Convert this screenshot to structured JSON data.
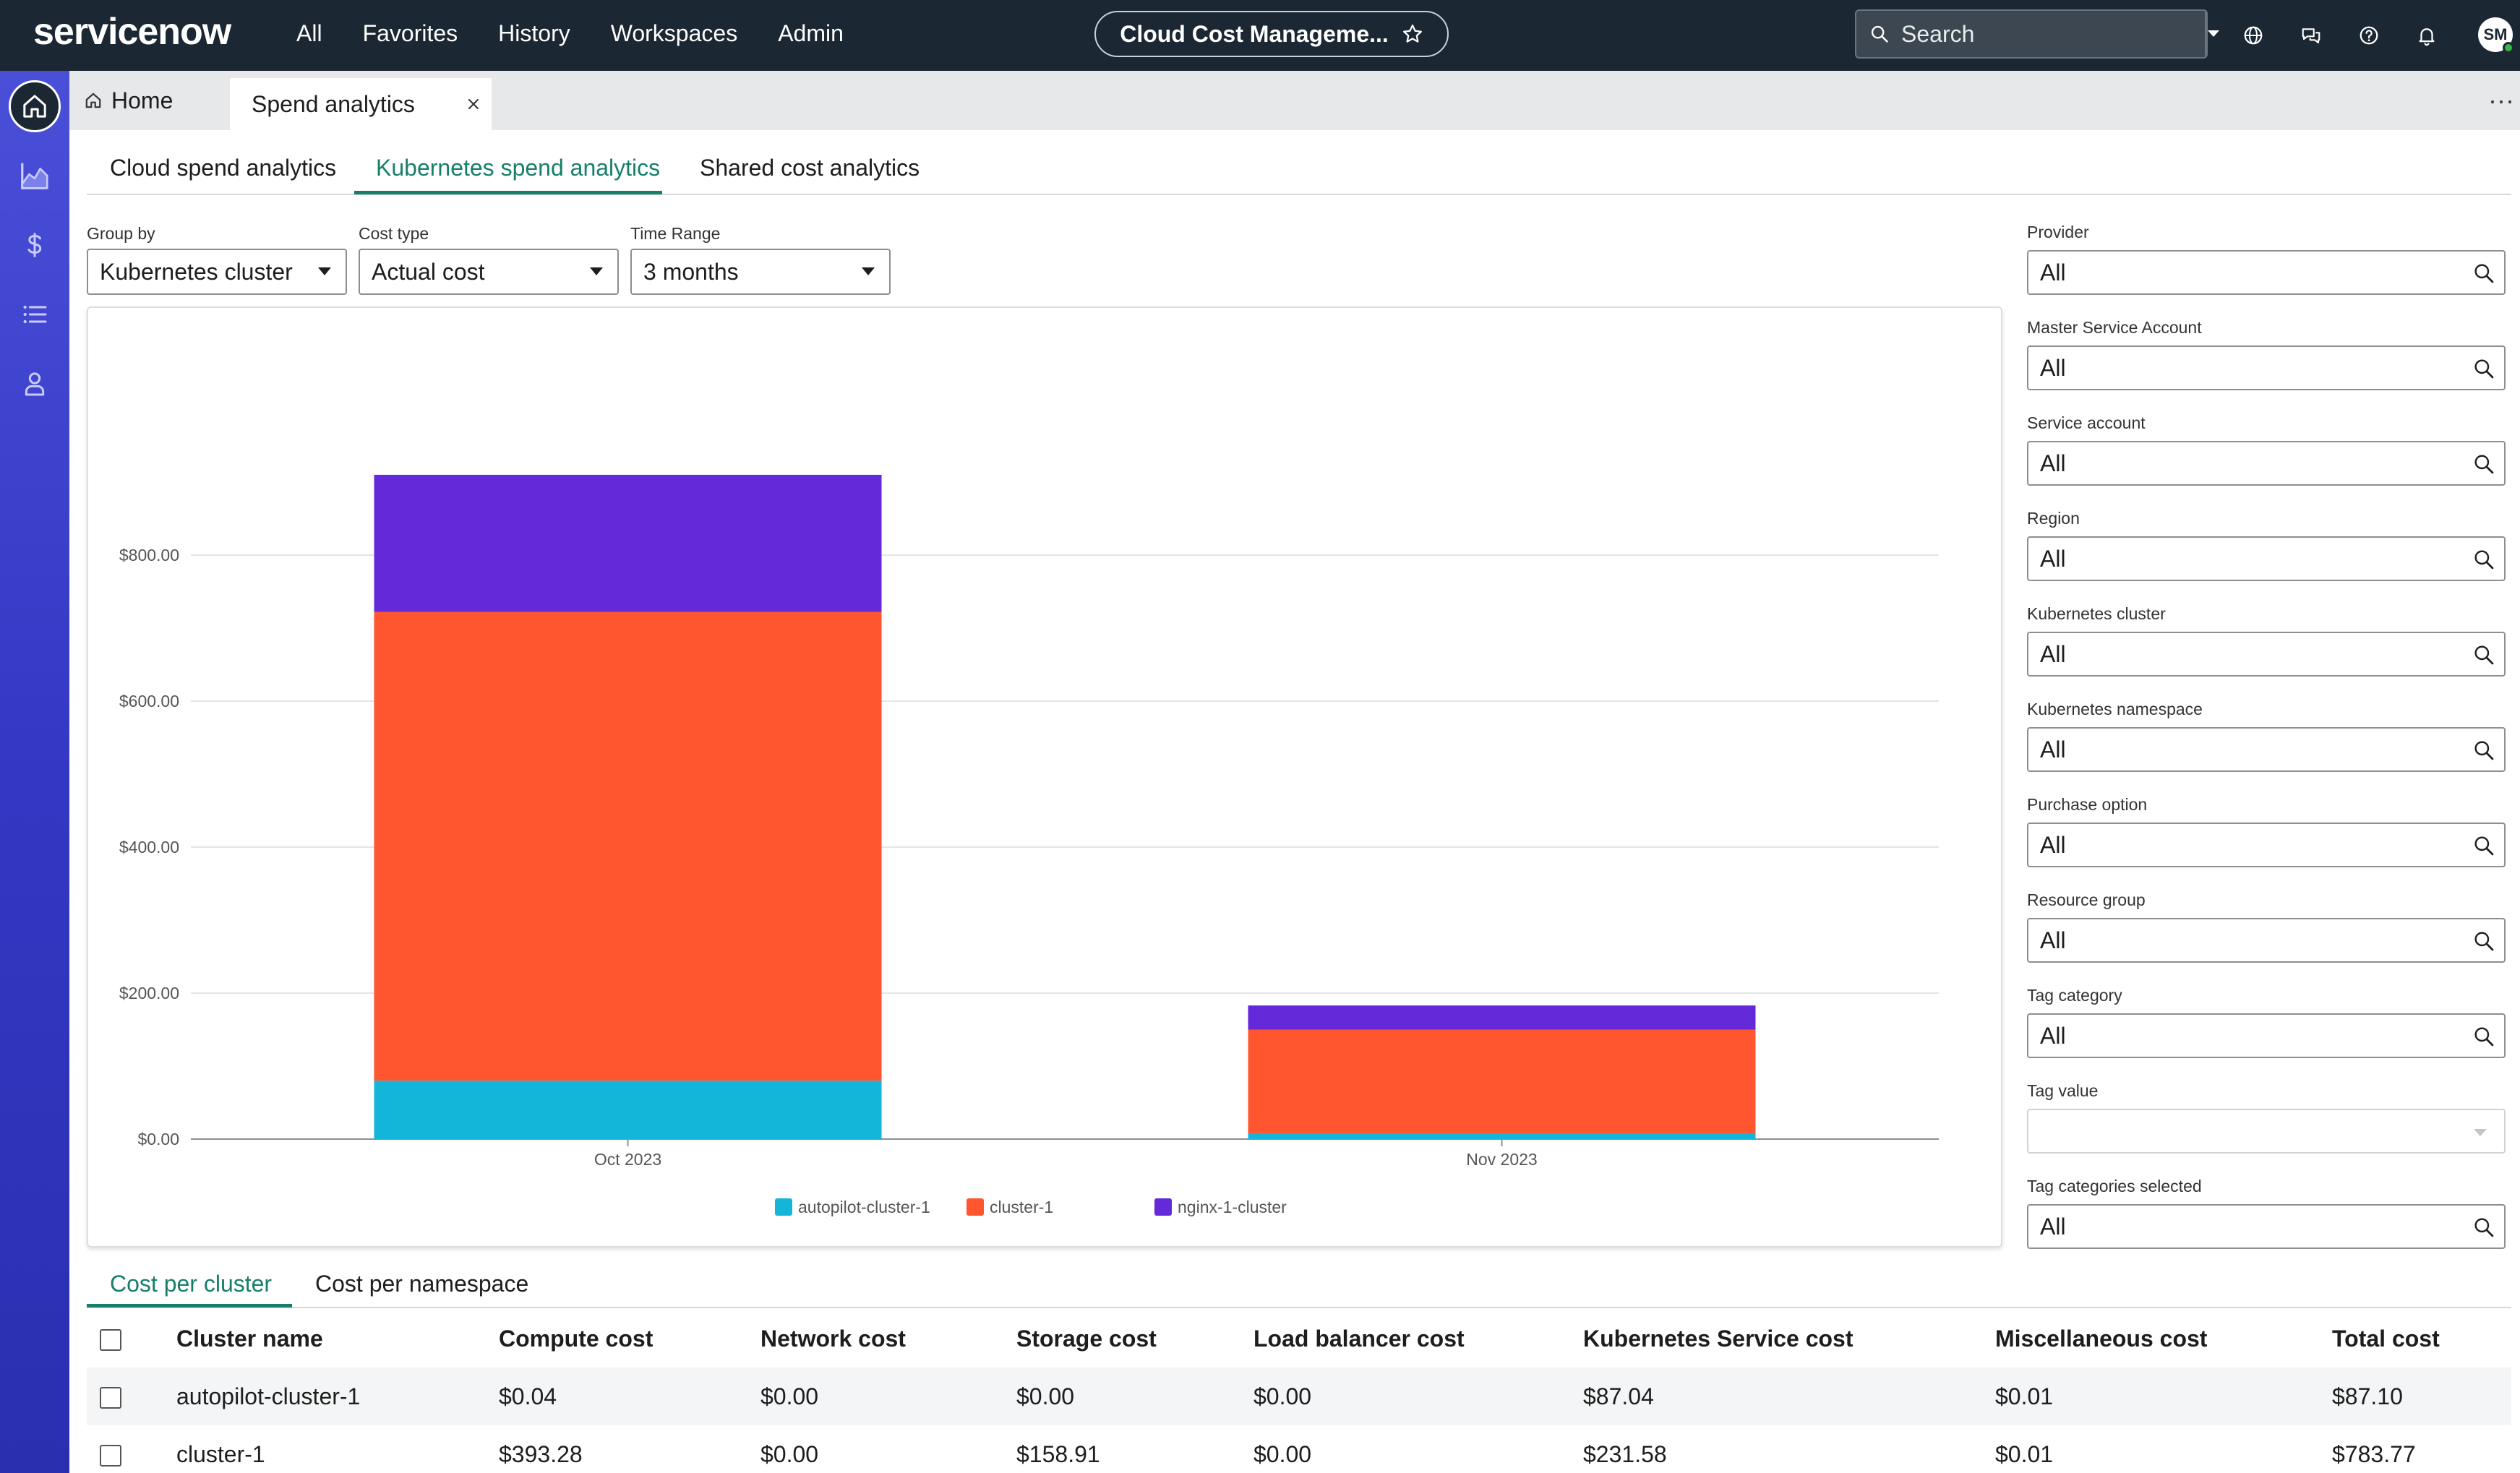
{
  "topbar": {
    "logo": "servicenow",
    "nav": [
      "All",
      "Favorites",
      "History",
      "Workspaces",
      "Admin"
    ],
    "app_title": "Cloud Cost Manageme...",
    "search_placeholder": "Search",
    "avatar_initials": "SM"
  },
  "tabs": {
    "home": "Home",
    "active": "Spend analytics"
  },
  "subtabs": [
    "Cloud spend analytics",
    "Kubernetes spend analytics",
    "Shared cost analytics"
  ],
  "filters": {
    "group_by": {
      "label": "Group by",
      "value": "Kubernetes cluster"
    },
    "cost_type": {
      "label": "Cost type",
      "value": "Actual cost"
    },
    "time_range": {
      "label": "Time Range",
      "value": "3 months"
    }
  },
  "right_filters": [
    {
      "label": "Provider",
      "value": "All"
    },
    {
      "label": "Master Service Account",
      "value": "All"
    },
    {
      "label": "Service account",
      "value": "All"
    },
    {
      "label": "Region",
      "value": "All"
    },
    {
      "label": "Kubernetes cluster",
      "value": "All"
    },
    {
      "label": "Kubernetes namespace",
      "value": "All"
    },
    {
      "label": "Purchase option",
      "value": "All"
    },
    {
      "label": "Resource group",
      "value": "All"
    },
    {
      "label": "Tag category",
      "value": "All"
    },
    {
      "label": "Tag value",
      "value": ""
    },
    {
      "label": "Tag categories selected",
      "value": "All"
    }
  ],
  "chart_data": {
    "type": "bar",
    "stacked": true,
    "categories": [
      "Oct 2023",
      "Nov 2023"
    ],
    "series": [
      {
        "name": "autopilot-cluster-1",
        "color": "#13b5d9",
        "values": [
          80,
          8
        ]
      },
      {
        "name": "cluster-1",
        "color": "#ff562f",
        "values": [
          642,
          142
        ]
      },
      {
        "name": "nginx-1-cluster",
        "color": "#642ad9",
        "values": [
          188,
          33
        ]
      }
    ],
    "yticks": [
      "$0.00",
      "$200.00",
      "$400.00",
      "$600.00",
      "$800.00"
    ],
    "ylim": [
      0,
      1000
    ],
    "grid": true,
    "legend": "bottom"
  },
  "bottom_tabs": [
    "Cost per cluster",
    "Cost per namespace"
  ],
  "table": {
    "columns": [
      "Cluster name",
      "Compute cost",
      "Network cost",
      "Storage cost",
      "Load balancer cost",
      "Kubernetes Service cost",
      "Miscellaneous cost",
      "Total cost"
    ],
    "rows": [
      [
        "autopilot-cluster-1",
        "$0.04",
        "$0.00",
        "$0.00",
        "$0.00",
        "$87.04",
        "$0.01",
        "$87.10"
      ],
      [
        "cluster-1",
        "$393.28",
        "$0.00",
        "$158.91",
        "$0.00",
        "$231.58",
        "$0.01",
        "$783.77"
      ]
    ]
  }
}
